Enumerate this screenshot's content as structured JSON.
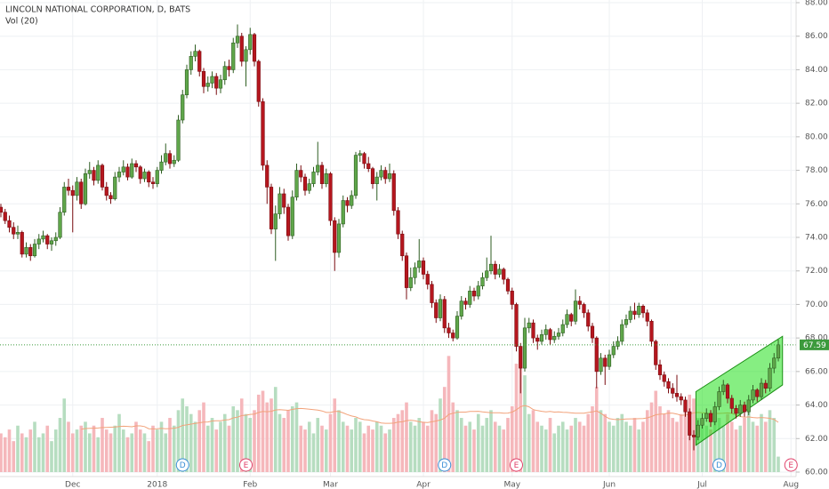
{
  "chart_data": {
    "type": "candlestick",
    "title": "LINCOLN NATIONAL CORPORATION, D, BATS",
    "volume_label": "Vol (20)",
    "ma_period": 20,
    "up_color": "#5fa64a",
    "down_color": "#b5161e",
    "volume_up_color": "#b6ddc0",
    "volume_down_color": "#f5b7bb",
    "ma_color": "#f2a27a",
    "ylim": [
      60,
      88
    ],
    "yticks": [
      {
        "value": 60,
        "label": "60.00"
      },
      {
        "value": 62,
        "label": "62.00"
      },
      {
        "value": 64,
        "label": "64.00"
      },
      {
        "value": 66,
        "label": "66.00"
      },
      {
        "value": 68,
        "label": "68.00"
      },
      {
        "value": 70,
        "label": "70.00"
      },
      {
        "value": 72,
        "label": "72.00"
      },
      {
        "value": 74,
        "label": "74.00"
      },
      {
        "value": 76,
        "label": "76.00"
      },
      {
        "value": 78,
        "label": "78.00"
      },
      {
        "value": 80,
        "label": "80.00"
      },
      {
        "value": 82,
        "label": "82.00"
      },
      {
        "value": 84,
        "label": "84.00"
      },
      {
        "value": 86,
        "label": "86.00"
      },
      {
        "value": 88,
        "label": "88.00"
      }
    ],
    "xticks": [
      {
        "value": 17,
        "label": "Dec"
      },
      {
        "value": 37,
        "label": "2018"
      },
      {
        "value": 59,
        "label": "Feb"
      },
      {
        "value": 78,
        "label": "Mar"
      },
      {
        "value": 100,
        "label": "Apr"
      },
      {
        "value": 121,
        "label": "May"
      },
      {
        "value": 144,
        "label": "Jun"
      },
      {
        "value": 166,
        "label": "Jul"
      },
      {
        "value": 187,
        "label": "Aug"
      }
    ],
    "events": [
      {
        "label": "D",
        "index": 43
      },
      {
        "label": "E",
        "index": 58
      },
      {
        "label": "D",
        "index": 105
      },
      {
        "label": "E",
        "index": 122
      },
      {
        "label": "D",
        "index": 170
      },
      {
        "label": "E",
        "index": 187
      }
    ],
    "channel": {
      "start": 164.5,
      "end": 185,
      "upper": [
        64.8,
        68.1
      ],
      "lower": [
        61.6,
        65.2
      ],
      "color": "#22e01c"
    },
    "candles": [
      [
        75.8,
        76.0,
        75.2,
        75.5
      ],
      [
        75.5,
        75.7,
        74.8,
        75.0
      ],
      [
        75.0,
        75.3,
        74.3,
        74.6
      ],
      [
        74.6,
        74.9,
        73.9,
        74.2
      ],
      [
        74.2,
        74.7,
        73.9,
        74.3
      ],
      [
        74.3,
        74.4,
        72.8,
        73.0
      ],
      [
        73.0,
        73.7,
        72.8,
        73.4
      ],
      [
        73.4,
        73.6,
        72.6,
        72.9
      ],
      [
        72.9,
        73.9,
        72.8,
        73.6
      ],
      [
        73.6,
        74.2,
        73.3,
        73.9
      ],
      [
        73.9,
        74.4,
        73.7,
        74.1
      ],
      [
        74.1,
        74.2,
        73.3,
        73.6
      ],
      [
        73.6,
        74.0,
        73.2,
        73.8
      ],
      [
        73.8,
        74.3,
        73.5,
        74.0
      ],
      [
        74.0,
        75.8,
        73.9,
        75.5
      ],
      [
        75.5,
        77.3,
        75.3,
        77.0
      ],
      [
        77.0,
        77.5,
        76.5,
        76.8
      ],
      [
        76.8,
        77.1,
        74.3,
        76.5
      ],
      [
        76.5,
        77.6,
        76.2,
        77.3
      ],
      [
        77.3,
        77.5,
        75.7,
        76.0
      ],
      [
        76.0,
        78.1,
        75.9,
        77.8
      ],
      [
        77.8,
        78.5,
        77.5,
        78.0
      ],
      [
        78.0,
        78.2,
        77.1,
        77.4
      ],
      [
        77.4,
        78.6,
        77.2,
        78.3
      ],
      [
        78.3,
        78.4,
        76.8,
        77.0
      ],
      [
        77.0,
        77.3,
        76.2,
        76.5
      ],
      [
        76.5,
        76.7,
        76.0,
        76.3
      ],
      [
        76.3,
        77.9,
        76.2,
        77.6
      ],
      [
        77.6,
        78.2,
        77.3,
        77.9
      ],
      [
        77.9,
        78.6,
        77.7,
        78.2
      ],
      [
        78.2,
        78.4,
        77.4,
        77.6
      ],
      [
        77.6,
        78.7,
        77.5,
        78.4
      ],
      [
        78.4,
        78.6,
        77.9,
        78.2
      ],
      [
        78.2,
        78.3,
        77.2,
        77.5
      ],
      [
        77.5,
        78.1,
        77.3,
        77.9
      ],
      [
        77.9,
        78.0,
        77.0,
        77.3
      ],
      [
        77.3,
        77.6,
        76.9,
        77.2
      ],
      [
        77.2,
        78.2,
        77.0,
        78.0
      ],
      [
        78.0,
        78.9,
        77.8,
        78.5
      ],
      [
        78.5,
        79.6,
        78.3,
        79.0
      ],
      [
        79.0,
        79.2,
        78.1,
        78.4
      ],
      [
        78.4,
        78.9,
        78.2,
        78.6
      ],
      [
        78.6,
        81.3,
        78.5,
        81.0
      ],
      [
        81.0,
        82.8,
        80.8,
        82.5
      ],
      [
        82.5,
        84.3,
        82.3,
        84.0
      ],
      [
        84.0,
        85.1,
        83.7,
        84.8
      ],
      [
        84.8,
        85.5,
        84.5,
        85.1
      ],
      [
        85.1,
        85.2,
        83.6,
        83.9
      ],
      [
        83.9,
        84.1,
        82.6,
        83.0
      ],
      [
        83.0,
        83.6,
        82.7,
        83.2
      ],
      [
        83.2,
        83.9,
        82.9,
        83.6
      ],
      [
        83.6,
        83.8,
        82.5,
        82.9
      ],
      [
        82.9,
        83.7,
        82.6,
        83.4
      ],
      [
        83.4,
        84.5,
        83.1,
        84.2
      ],
      [
        84.2,
        84.6,
        83.6,
        84.0
      ],
      [
        84.0,
        85.9,
        83.8,
        85.6
      ],
      [
        85.6,
        86.7,
        85.3,
        86.0
      ],
      [
        86.0,
        86.2,
        84.2,
        84.5
      ],
      [
        84.5,
        85.4,
        83.0,
        85.2
      ],
      [
        85.2,
        86.5,
        84.9,
        86.1
      ],
      [
        86.1,
        86.2,
        84.2,
        84.5
      ],
      [
        84.5,
        84.6,
        81.8,
        82.1
      ],
      [
        82.1,
        82.3,
        78.0,
        78.3
      ],
      [
        78.3,
        78.6,
        76.0,
        77.0
      ],
      [
        77.0,
        77.2,
        74.2,
        74.5
      ],
      [
        74.5,
        75.9,
        72.6,
        75.4
      ],
      [
        75.4,
        77.0,
        75.1,
        76.6
      ],
      [
        76.6,
        76.9,
        75.4,
        75.8
      ],
      [
        75.8,
        76.0,
        73.8,
        74.1
      ],
      [
        74.1,
        76.8,
        73.9,
        76.4
      ],
      [
        76.4,
        78.4,
        76.2,
        78.0
      ],
      [
        78.0,
        78.3,
        77.3,
        77.6
      ],
      [
        77.6,
        77.8,
        76.5,
        76.8
      ],
      [
        76.8,
        77.5,
        76.6,
        77.2
      ],
      [
        77.2,
        78.2,
        77.0,
        77.9
      ],
      [
        77.9,
        79.7,
        77.7,
        78.3
      ],
      [
        78.3,
        78.5,
        76.9,
        77.2
      ],
      [
        77.2,
        78.1,
        77.0,
        77.8
      ],
      [
        77.8,
        77.9,
        74.7,
        75.0
      ],
      [
        75.0,
        75.2,
        72.0,
        73.1
      ],
      [
        73.1,
        75.1,
        72.8,
        74.8
      ],
      [
        74.8,
        76.5,
        74.6,
        76.2
      ],
      [
        76.2,
        76.4,
        75.5,
        75.9
      ],
      [
        75.9,
        76.8,
        75.7,
        76.5
      ],
      [
        76.5,
        79.1,
        76.3,
        78.9
      ],
      [
        78.9,
        79.2,
        78.5,
        79.0
      ],
      [
        79.0,
        79.1,
        78.1,
        78.4
      ],
      [
        78.4,
        78.8,
        77.9,
        78.1
      ],
      [
        78.1,
        78.2,
        76.9,
        77.2
      ],
      [
        77.2,
        77.9,
        76.2,
        77.6
      ],
      [
        77.6,
        78.3,
        77.4,
        78.0
      ],
      [
        78.0,
        78.2,
        77.2,
        77.5
      ],
      [
        77.5,
        78.4,
        77.3,
        77.8
      ],
      [
        77.8,
        78.0,
        75.3,
        75.6
      ],
      [
        75.6,
        75.8,
        73.9,
        74.2
      ],
      [
        74.2,
        74.4,
        72.6,
        72.9
      ],
      [
        72.9,
        73.1,
        70.3,
        71.0
      ],
      [
        71.0,
        72.2,
        70.8,
        71.6
      ],
      [
        71.6,
        72.5,
        71.2,
        72.2
      ],
      [
        72.2,
        73.9,
        71.9,
        72.6
      ],
      [
        72.6,
        72.8,
        71.5,
        71.8
      ],
      [
        71.8,
        72.0,
        70.9,
        71.2
      ],
      [
        71.2,
        71.4,
        69.8,
        70.1
      ],
      [
        70.1,
        70.3,
        68.9,
        69.2
      ],
      [
        69.2,
        70.6,
        69.0,
        70.3
      ],
      [
        70.3,
        70.5,
        68.3,
        68.6
      ],
      [
        68.6,
        68.9,
        68.0,
        68.3
      ],
      [
        68.3,
        68.5,
        67.8,
        68.0
      ],
      [
        68.0,
        69.6,
        67.9,
        69.3
      ],
      [
        69.3,
        70.5,
        69.1,
        70.2
      ],
      [
        70.2,
        70.4,
        69.7,
        70.0
      ],
      [
        70.0,
        71.1,
        69.8,
        70.8
      ],
      [
        70.8,
        71.0,
        70.2,
        70.5
      ],
      [
        70.5,
        71.4,
        70.3,
        71.1
      ],
      [
        71.1,
        71.9,
        70.9,
        71.6
      ],
      [
        71.6,
        72.8,
        71.4,
        72.0
      ],
      [
        72.0,
        74.1,
        71.8,
        72.4
      ],
      [
        72.4,
        72.6,
        71.5,
        71.8
      ],
      [
        71.8,
        72.4,
        71.6,
        72.1
      ],
      [
        72.1,
        72.2,
        71.2,
        71.5
      ],
      [
        71.5,
        71.6,
        70.6,
        70.8
      ],
      [
        70.8,
        71.0,
        69.7,
        70.0
      ],
      [
        70.0,
        70.1,
        67.2,
        67.5
      ],
      [
        67.5,
        67.7,
        64.7,
        66.2
      ],
      [
        66.2,
        69.2,
        66.0,
        68.6
      ],
      [
        68.6,
        69.2,
        68.3,
        68.9
      ],
      [
        68.9,
        69.1,
        67.7,
        68.0
      ],
      [
        68.0,
        68.2,
        67.3,
        67.8
      ],
      [
        67.8,
        68.5,
        67.6,
        68.2
      ],
      [
        68.2,
        68.8,
        67.9,
        68.5
      ],
      [
        68.5,
        68.6,
        67.6,
        67.9
      ],
      [
        67.9,
        68.4,
        67.7,
        68.1
      ],
      [
        68.1,
        68.6,
        67.9,
        68.3
      ],
      [
        68.3,
        69.1,
        68.1,
        68.8
      ],
      [
        68.8,
        69.7,
        68.6,
        69.4
      ],
      [
        69.4,
        69.5,
        68.7,
        69.0
      ],
      [
        69.0,
        70.9,
        68.8,
        70.2
      ],
      [
        70.2,
        70.5,
        69.7,
        70.0
      ],
      [
        70.0,
        70.1,
        69.2,
        69.5
      ],
      [
        69.5,
        69.7,
        68.4,
        68.7
      ],
      [
        68.7,
        68.9,
        67.7,
        68.0
      ],
      [
        68.0,
        68.1,
        65.0,
        66.0
      ],
      [
        66.0,
        67.1,
        65.8,
        66.8
      ],
      [
        66.8,
        67.0,
        65.2,
        66.3
      ],
      [
        66.3,
        67.3,
        66.1,
        67.0
      ],
      [
        67.0,
        67.8,
        66.8,
        67.5
      ],
      [
        67.5,
        68.1,
        67.3,
        67.8
      ],
      [
        67.8,
        69.1,
        67.6,
        68.8
      ],
      [
        68.8,
        69.4,
        68.6,
        69.1
      ],
      [
        69.1,
        69.9,
        68.9,
        69.6
      ],
      [
        69.6,
        70.1,
        69.1,
        69.4
      ],
      [
        69.4,
        70.1,
        69.2,
        69.9
      ],
      [
        69.9,
        70.0,
        69.2,
        69.5
      ],
      [
        69.5,
        69.7,
        68.7,
        69.0
      ],
      [
        69.0,
        69.1,
        67.5,
        67.8
      ],
      [
        67.8,
        67.9,
        66.1,
        66.4
      ],
      [
        66.4,
        66.7,
        65.5,
        65.8
      ],
      [
        65.8,
        66.0,
        65.1,
        65.4
      ],
      [
        65.4,
        65.6,
        64.7,
        65.0
      ],
      [
        65.0,
        65.3,
        64.4,
        64.7
      ],
      [
        64.7,
        65.8,
        64.2,
        64.5
      ],
      [
        64.5,
        64.7,
        64.0,
        64.3
      ],
      [
        64.3,
        64.5,
        63.3,
        63.6
      ],
      [
        63.6,
        63.8,
        61.9,
        62.2
      ],
      [
        62.2,
        62.5,
        61.3,
        62.1
      ],
      [
        62.1,
        63.1,
        61.9,
        62.8
      ],
      [
        62.8,
        63.5,
        62.6,
        63.2
      ],
      [
        63.2,
        63.8,
        63.0,
        63.5
      ],
      [
        63.5,
        63.7,
        62.7,
        63.0
      ],
      [
        63.0,
        64.2,
        62.8,
        63.9
      ],
      [
        63.9,
        65.1,
        63.7,
        64.8
      ],
      [
        64.8,
        65.5,
        64.6,
        65.2
      ],
      [
        65.2,
        65.3,
        64.1,
        64.4
      ],
      [
        64.4,
        64.6,
        63.5,
        63.8
      ],
      [
        63.8,
        64.0,
        63.2,
        63.5
      ],
      [
        63.5,
        64.3,
        63.3,
        64.0
      ],
      [
        64.0,
        64.2,
        63.3,
        63.6
      ],
      [
        63.6,
        64.6,
        63.4,
        64.3
      ],
      [
        64.3,
        65.2,
        64.1,
        64.9
      ],
      [
        64.9,
        65.0,
        64.2,
        64.5
      ],
      [
        64.5,
        65.6,
        64.3,
        65.3
      ],
      [
        65.3,
        65.5,
        64.7,
        65.0
      ],
      [
        65.0,
        66.5,
        64.8,
        66.2
      ],
      [
        66.2,
        67.1,
        65.9,
        66.8
      ],
      [
        66.8,
        67.9,
        66.6,
        67.59
      ]
    ],
    "volume": [
      1.0,
      0.9,
      1.1,
      0.8,
      1.2,
      1.0,
      0.9,
      1.1,
      1.3,
      0.9,
      1.0,
      1.2,
      0.8,
      1.1,
      1.4,
      1.9,
      1.3,
      1.0,
      1.1,
      1.2,
      1.3,
      1.0,
      1.2,
      0.9,
      1.4,
      1.1,
      1.0,
      1.2,
      1.5,
      1.1,
      0.9,
      1.0,
      1.3,
      1.1,
      1.0,
      0.8,
      1.2,
      1.1,
      1.3,
      1.0,
      1.4,
      1.2,
      1.6,
      1.9,
      1.7,
      1.5,
      1.3,
      1.6,
      1.8,
      1.2,
      1.4,
      1.1,
      1.3,
      1.5,
      1.2,
      1.7,
      1.6,
      1.9,
      1.5,
      1.4,
      1.6,
      2.0,
      2.1,
      1.8,
      1.9,
      2.2,
      1.5,
      1.4,
      1.6,
      1.7,
      1.8,
      1.2,
      1.1,
      1.3,
      1.0,
      1.4,
      1.2,
      1.1,
      1.5,
      1.9,
      1.6,
      1.3,
      1.2,
      1.1,
      1.4,
      1.3,
      1.0,
      1.2,
      1.1,
      1.3,
      1.2,
      1.0,
      1.1,
      1.4,
      1.5,
      1.6,
      1.8,
      1.3,
      1.2,
      1.4,
      1.3,
      1.2,
      1.6,
      1.5,
      1.9,
      2.2,
      3.0,
      1.8,
      1.6,
      1.4,
      1.2,
      1.3,
      1.1,
      1.5,
      1.2,
      1.4,
      1.6,
      1.3,
      1.2,
      1.1,
      1.4,
      1.7,
      2.8,
      3.1,
      2.5,
      1.5,
      1.6,
      1.3,
      1.2,
      1.1,
      1.4,
      1.0,
      1.2,
      1.3,
      1.1,
      1.2,
      1.4,
      1.3,
      1.2,
      1.5,
      1.7,
      2.2,
      1.6,
      1.5,
      1.3,
      1.2,
      1.4,
      1.5,
      1.3,
      1.2,
      1.4,
      1.1,
      1.3,
      1.6,
      1.8,
      2.1,
      1.7,
      1.5,
      1.6,
      1.4,
      1.3,
      1.5,
      1.8,
      2.0,
      1.9,
      1.4,
      1.3,
      1.2,
      1.1,
      1.3,
      1.4,
      1.2,
      1.5,
      1.3,
      1.1,
      1.2,
      1.4,
      1.6,
      1.3,
      1.2,
      1.5,
      1.3,
      1.6,
      1.4,
      0.4
    ]
  }
}
